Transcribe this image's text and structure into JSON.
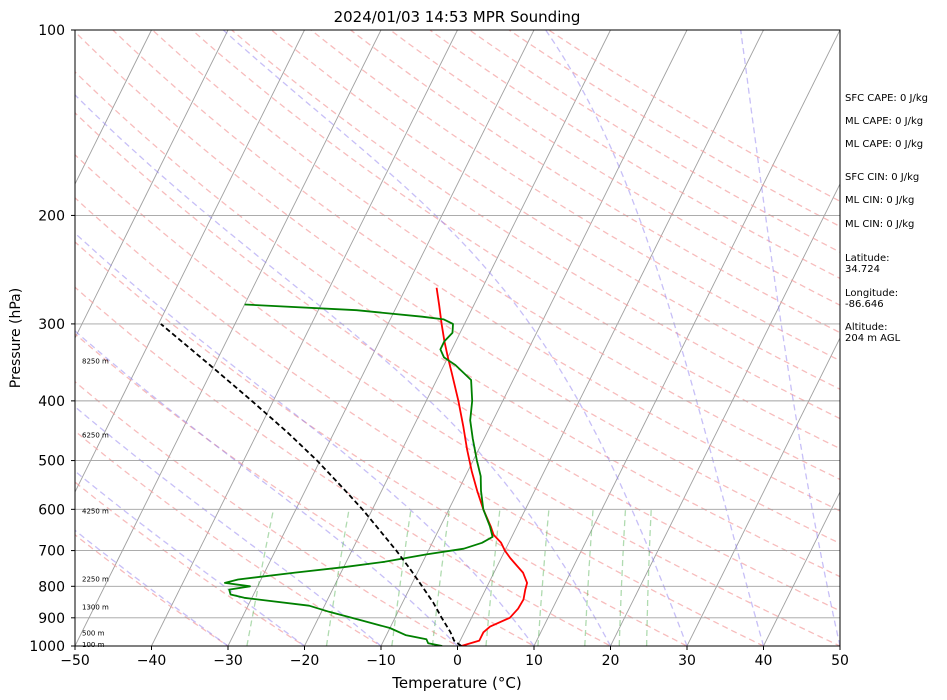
{
  "chart_data": {
    "type": "line",
    "title": "2024/01/03 14:53 MPR Sounding",
    "xlabel": "Temperature (°C)",
    "ylabel": "Pressure (hPa)",
    "xlim": [
      -50,
      50
    ],
    "ylim": [
      1000,
      100
    ],
    "y_scale": "log",
    "x_ticks": [
      "−50",
      "−40",
      "−30",
      "−20",
      "−10",
      "0",
      "10",
      "20",
      "30",
      "40",
      "50"
    ],
    "x_tick_values": [
      -50,
      -40,
      -30,
      -20,
      -10,
      0,
      10,
      20,
      30,
      40,
      50
    ],
    "y_ticks": [
      "1000",
      "900",
      "800",
      "700",
      "600",
      "500",
      "400",
      "300",
      "200",
      "100"
    ],
    "y_tick_values": [
      1000,
      900,
      800,
      700,
      600,
      500,
      400,
      300,
      200,
      100
    ],
    "grid": true,
    "series": [
      {
        "color": "#ff0000",
        "points": [
          [
            1000,
            0.5
          ],
          [
            980,
            2.5
          ],
          [
            950,
            2.5
          ],
          [
            930,
            3.0
          ],
          [
            900,
            5.0
          ],
          [
            870,
            5.5
          ],
          [
            840,
            5.6
          ],
          [
            810,
            5.2
          ],
          [
            790,
            5.0
          ],
          [
            760,
            3.8
          ],
          [
            740,
            2.5
          ],
          [
            720,
            1.2
          ],
          [
            700,
            0.0
          ],
          [
            680,
            -1.0
          ],
          [
            660,
            -2.5
          ],
          [
            640,
            -3.4
          ],
          [
            600,
            -5.5
          ],
          [
            560,
            -7.5
          ],
          [
            520,
            -9.5
          ],
          [
            480,
            -11.5
          ],
          [
            440,
            -13.5
          ],
          [
            400,
            -15.8
          ],
          [
            360,
            -18.5
          ],
          [
            340,
            -20.0
          ],
          [
            320,
            -21.5
          ],
          [
            300,
            -23.0
          ],
          [
            280,
            -24.5
          ],
          [
            262,
            -26.0
          ]
        ]
      },
      {
        "color": "#008000",
        "points": [
          [
            1000,
            -2.0
          ],
          [
            990,
            -4.0
          ],
          [
            975,
            -4.5
          ],
          [
            960,
            -7.5
          ],
          [
            935,
            -10.0
          ],
          [
            910,
            -14.0
          ],
          [
            880,
            -19.0
          ],
          [
            860,
            -22.0
          ],
          [
            835,
            -31.0
          ],
          [
            825,
            -33.0
          ],
          [
            810,
            -33.5
          ],
          [
            800,
            -31.0
          ],
          [
            790,
            -34.5
          ],
          [
            780,
            -33.0
          ],
          [
            760,
            -26.0
          ],
          [
            745,
            -20.0
          ],
          [
            730,
            -15.0
          ],
          [
            710,
            -10.0
          ],
          [
            695,
            -5.5
          ],
          [
            680,
            -3.5
          ],
          [
            665,
            -2.5
          ],
          [
            640,
            -3.5
          ],
          [
            600,
            -5.5
          ],
          [
            560,
            -7.0
          ],
          [
            530,
            -8.0
          ],
          [
            500,
            -9.5
          ],
          [
            460,
            -11.5
          ],
          [
            430,
            -13.0
          ],
          [
            400,
            -14.0
          ],
          [
            370,
            -15.5
          ],
          [
            350,
            -18.5
          ],
          [
            340,
            -20.5
          ],
          [
            330,
            -21.5
          ],
          [
            320,
            -21.5
          ],
          [
            310,
            -21.0
          ],
          [
            300,
            -21.5
          ],
          [
            295,
            -23.0
          ],
          [
            292,
            -26.0
          ],
          [
            285,
            -35.0
          ],
          [
            279,
            -50.0
          ]
        ]
      },
      {
        "color": "#000000",
        "dash": "dashed",
        "points": [
          [
            1000,
            0.5
          ],
          [
            980,
            -0.8
          ],
          [
            950,
            -1.8
          ],
          [
            900,
            -3.9
          ],
          [
            850,
            -6.0
          ],
          [
            800,
            -8.5
          ],
          [
            750,
            -11.2
          ],
          [
            700,
            -14.2
          ],
          [
            650,
            -17.6
          ],
          [
            600,
            -21.3
          ],
          [
            550,
            -25.6
          ],
          [
            500,
            -30.4
          ],
          [
            450,
            -36.1
          ],
          [
            400,
            -42.8
          ],
          [
            350,
            -50.6
          ],
          [
            300,
            -59.7
          ]
        ]
      }
    ],
    "height_labels": [
      {
        "p": 996,
        "text": "100 m"
      },
      {
        "p": 955,
        "text": "500 m"
      },
      {
        "p": 866,
        "text": "1300 m"
      },
      {
        "p": 780,
        "text": "2250 m"
      },
      {
        "p": 605,
        "text": "4250 m"
      },
      {
        "p": 455,
        "text": "6250 m"
      },
      {
        "p": 345,
        "text": "8250 m"
      }
    ]
  },
  "side_info": [
    {
      "text": "SFC CAPE: 0 J/kg"
    },
    {
      "text": "ML CAPE: 0 J/kg"
    },
    {
      "text": "ML CAPE: 0 J/kg"
    },
    {
      "text": "SFC CIN: 0 J/kg"
    },
    {
      "text": "ML CIN: 0 J/kg"
    },
    {
      "text": "ML CIN: 0 J/kg"
    },
    {
      "text": "Latitude:\n34.724"
    },
    {
      "text": "Longitude:\n-86.646"
    },
    {
      "text": "Altitude:\n204 m AGL"
    }
  ]
}
